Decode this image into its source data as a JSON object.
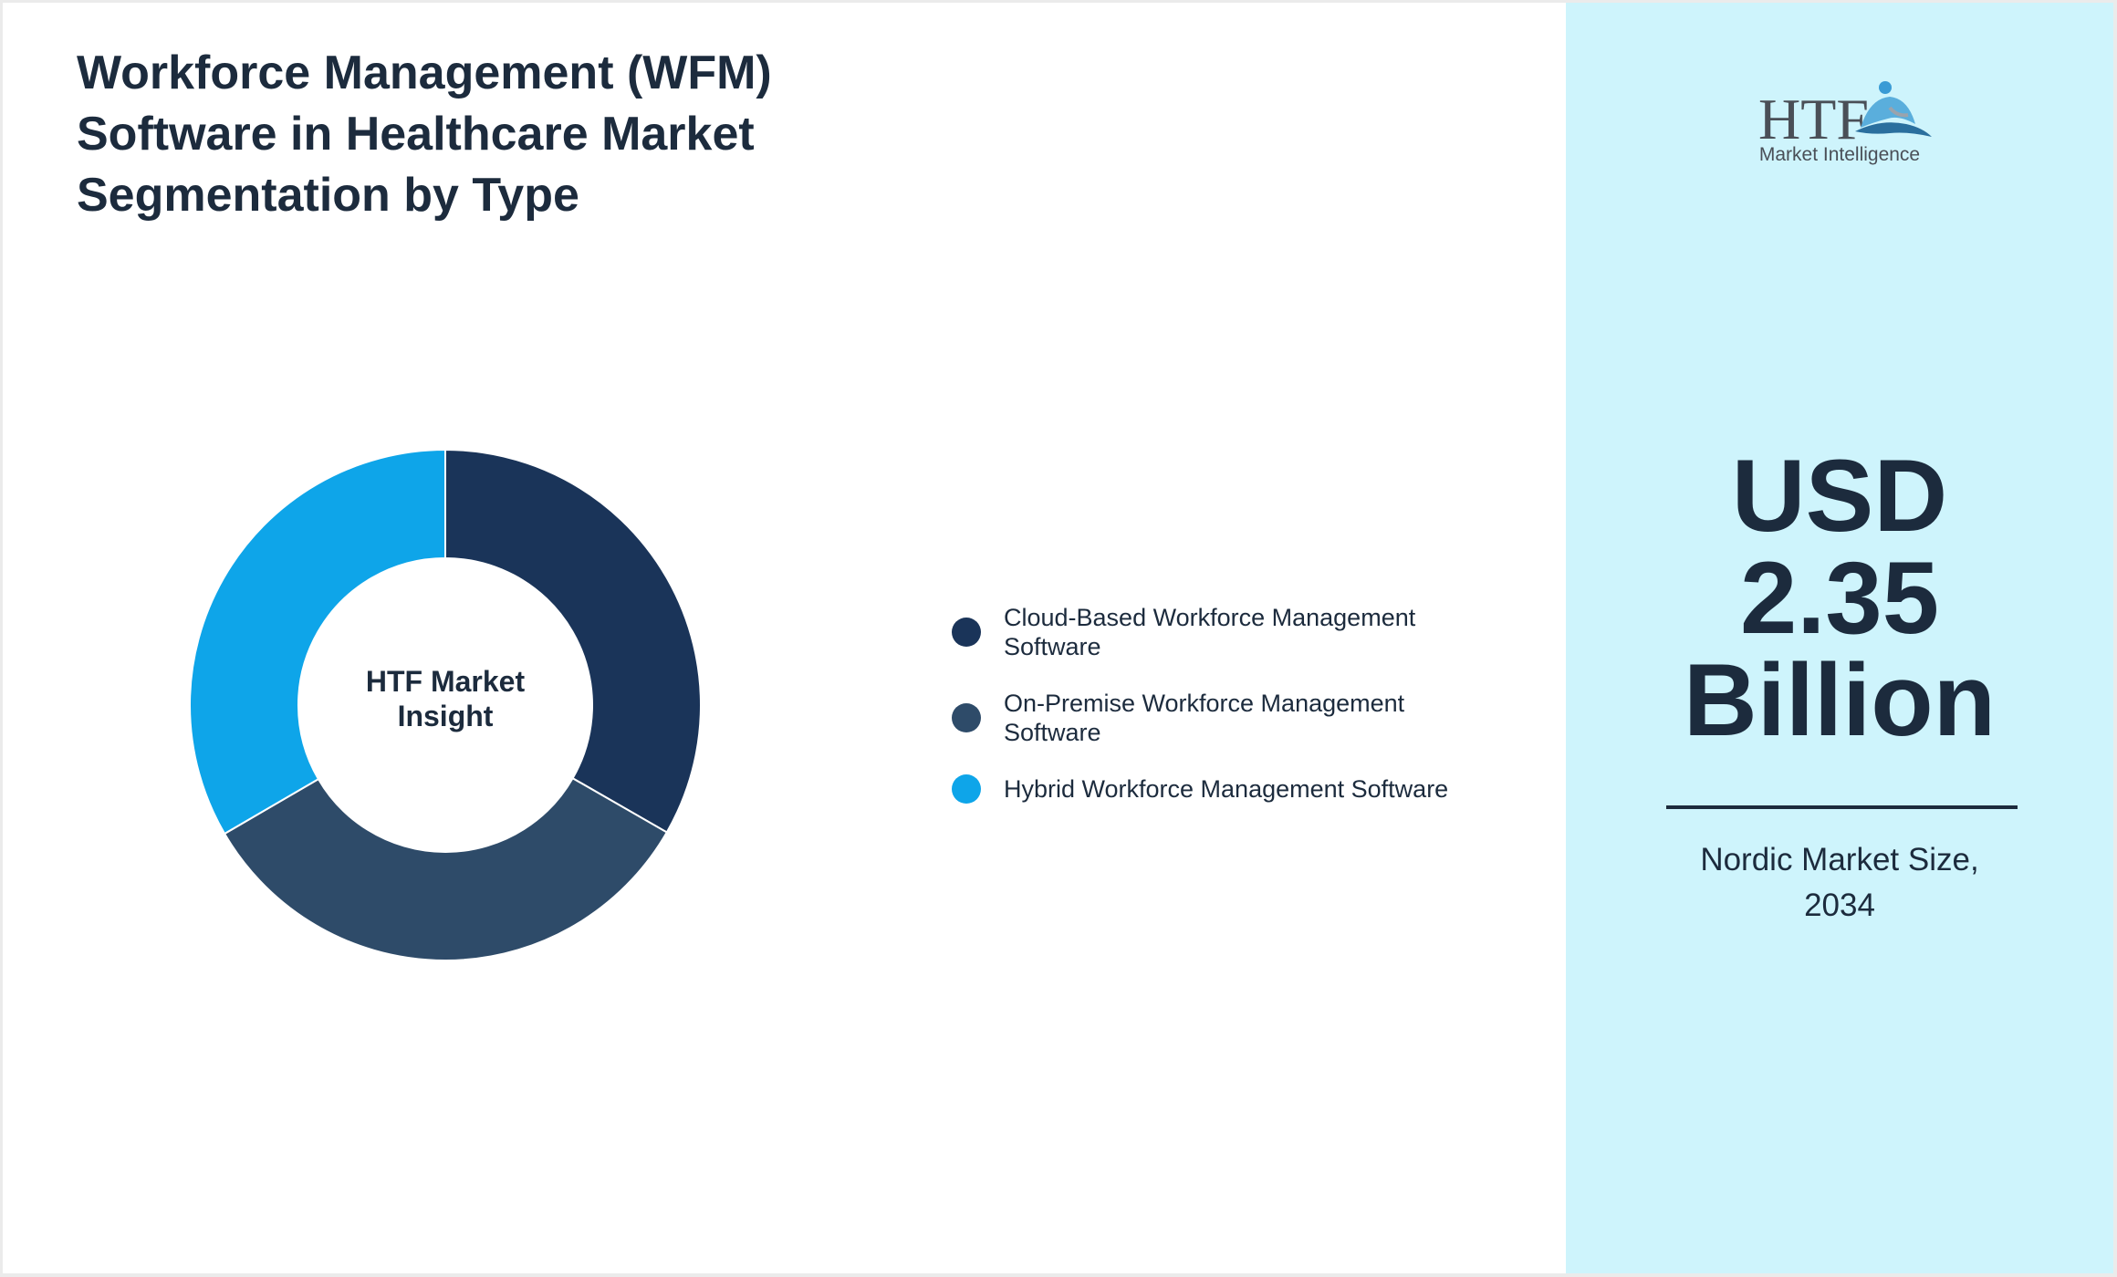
{
  "title": {
    "lines": [
      "Workforce Management (WFM)",
      "Software in Healthcare Market",
      "Segmentation by Type"
    ]
  },
  "chart_data": {
    "type": "pie",
    "variant": "donut",
    "categories": [
      "Cloud-Based Workforce Management Software",
      "On-Premise Workforce Management Software",
      "Hybrid Workforce Management Software"
    ],
    "values": [
      33.3,
      33.3,
      33.4
    ],
    "colors": [
      "#1a3459",
      "#2e4b69",
      "#0ea5e9"
    ],
    "center_label": [
      "HTF Market",
      "Insight"
    ],
    "legend_position": "right",
    "legend": [
      {
        "lines": [
          "Cloud-Based Workforce Management",
          "Software"
        ],
        "color": "#1a3459"
      },
      {
        "lines": [
          "On-Premise Workforce Management",
          "Software"
        ],
        "color": "#2e4b69"
      },
      {
        "lines": [
          "Hybrid Workforce Management Software"
        ],
        "color": "#0ea5e9"
      }
    ]
  },
  "logo": {
    "mark": "HTF",
    "text": "Market Intelligence",
    "icon": "htf-logo-icon"
  },
  "highlight": {
    "value_lines": [
      "USD",
      "2.35",
      "Billion"
    ],
    "caption_lines": [
      "Nordic Market Size,",
      "2034"
    ]
  },
  "colors": {
    "background": "#ffffff",
    "side_panel": "#cef4fc",
    "text": "#1c2b3d"
  }
}
